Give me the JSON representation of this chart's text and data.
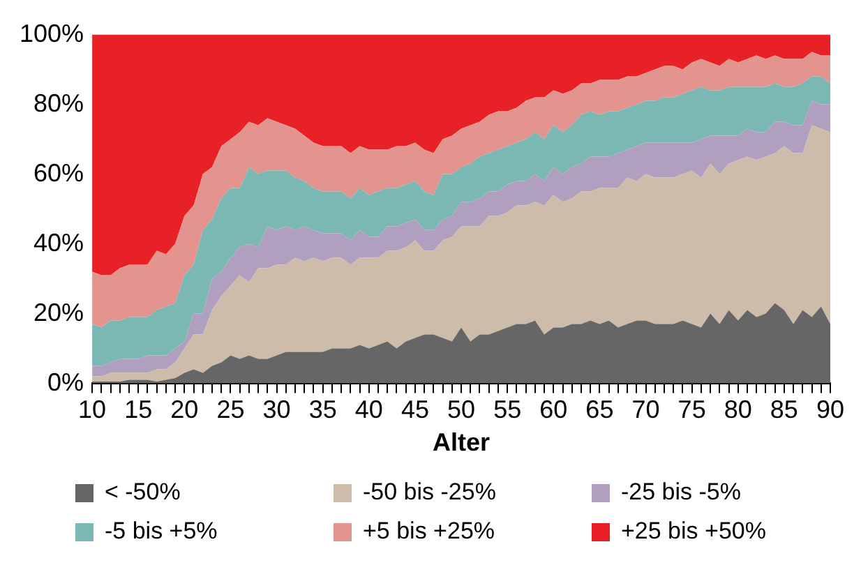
{
  "chart_data": {
    "type": "area",
    "stacked": true,
    "xlabel": "Alter",
    "legend": "bottom",
    "grid": false,
    "x": [
      10,
      11,
      12,
      13,
      14,
      15,
      16,
      17,
      18,
      19,
      20,
      21,
      22,
      23,
      24,
      25,
      26,
      27,
      28,
      29,
      30,
      31,
      32,
      33,
      34,
      35,
      36,
      37,
      38,
      39,
      40,
      41,
      42,
      43,
      44,
      45,
      46,
      47,
      48,
      49,
      50,
      51,
      52,
      53,
      54,
      55,
      56,
      57,
      58,
      59,
      60,
      61,
      62,
      63,
      64,
      65,
      66,
      67,
      68,
      69,
      70,
      71,
      72,
      73,
      74,
      75,
      76,
      77,
      78,
      79,
      80,
      81,
      82,
      83,
      84,
      85,
      86,
      87,
      88,
      89,
      90
    ],
    "xlim": [
      10,
      90
    ],
    "xticks": [
      10,
      {
        "value": 11,
        "label": null
      },
      {
        "value": 12,
        "label": null
      },
      {
        "value": 13,
        "label": null
      },
      {
        "value": 14,
        "label": null
      },
      15,
      {
        "value": 16,
        "label": null
      },
      {
        "value": 17,
        "label": null
      },
      {
        "value": 18,
        "label": null
      },
      {
        "value": 19,
        "label": null
      },
      20,
      {
        "value": 21,
        "label": null
      },
      {
        "value": 22,
        "label": null
      },
      {
        "value": 23,
        "label": null
      },
      {
        "value": 24,
        "label": null
      },
      25,
      {
        "value": 26,
        "label": null
      },
      {
        "value": 27,
        "label": null
      },
      {
        "value": 28,
        "label": null
      },
      {
        "value": 29,
        "label": null
      },
      30,
      {
        "value": 31,
        "label": null
      },
      {
        "value": 32,
        "label": null
      },
      {
        "value": 33,
        "label": null
      },
      {
        "value": 34,
        "label": null
      },
      35,
      {
        "value": 36,
        "label": null
      },
      {
        "value": 37,
        "label": null
      },
      {
        "value": 38,
        "label": null
      },
      {
        "value": 39,
        "label": null
      },
      40,
      {
        "value": 41,
        "label": null
      },
      {
        "value": 42,
        "label": null
      },
      {
        "value": 43,
        "label": null
      },
      {
        "value": 44,
        "label": null
      },
      45,
      {
        "value": 46,
        "label": null
      },
      {
        "value": 47,
        "label": null
      },
      {
        "value": 48,
        "label": null
      },
      {
        "value": 49,
        "label": null
      },
      50,
      {
        "value": 51,
        "label": null
      },
      {
        "value": 52,
        "label": null
      },
      {
        "value": 53,
        "label": null
      },
      {
        "value": 54,
        "label": null
      },
      55,
      {
        "value": 56,
        "label": null
      },
      {
        "value": 57,
        "label": null
      },
      {
        "value": 58,
        "label": null
      },
      {
        "value": 59,
        "label": null
      },
      60,
      {
        "value": 61,
        "label": null
      },
      {
        "value": 62,
        "label": null
      },
      {
        "value": 63,
        "label": null
      },
      {
        "value": 64,
        "label": null
      },
      65,
      {
        "value": 66,
        "label": null
      },
      {
        "value": 67,
        "label": null
      },
      {
        "value": 68,
        "label": null
      },
      {
        "value": 69,
        "label": null
      },
      70,
      {
        "value": 71,
        "label": null
      },
      {
        "value": 72,
        "label": null
      },
      {
        "value": 73,
        "label": null
      },
      {
        "value": 74,
        "label": null
      },
      75,
      {
        "value": 76,
        "label": null
      },
      {
        "value": 77,
        "label": null
      },
      {
        "value": 78,
        "label": null
      },
      {
        "value": 79,
        "label": null
      },
      80,
      {
        "value": 81,
        "label": null
      },
      {
        "value": 82,
        "label": null
      },
      {
        "value": 83,
        "label": null
      },
      {
        "value": 84,
        "label": null
      },
      85,
      {
        "value": 86,
        "label": null
      },
      {
        "value": 87,
        "label": null
      },
      {
        "value": 88,
        "label": null
      },
      {
        "value": 89,
        "label": null
      },
      90
    ],
    "ylim": [
      0,
      100
    ],
    "yticks": [
      {
        "value": 0,
        "label": "0%"
      },
      {
        "value": 20,
        "label": "20%"
      },
      {
        "value": 40,
        "label": "40%"
      },
      {
        "value": 60,
        "label": "60%"
      },
      {
        "value": 80,
        "label": "80%"
      },
      {
        "value": 100,
        "label": "100%"
      }
    ],
    "series": [
      {
        "name": "< -50%",
        "color": "#666666",
        "values": [
          0.5,
          0.5,
          0.5,
          0.5,
          1,
          1,
          1,
          0.5,
          1,
          1.5,
          3,
          4,
          3,
          5,
          6,
          8,
          7,
          8,
          7,
          7,
          8,
          9,
          9,
          9,
          9,
          9,
          10,
          10,
          10,
          11,
          10,
          11,
          12,
          10,
          12,
          13,
          14,
          14,
          13,
          12,
          16,
          12,
          14,
          14,
          15,
          16,
          17,
          17,
          18,
          14,
          16,
          16,
          17,
          17,
          18,
          17,
          18,
          16,
          17,
          18,
          18,
          17,
          17,
          17,
          18,
          17,
          16,
          20,
          17,
          21,
          18,
          21,
          19,
          20,
          23,
          21,
          17,
          21,
          19,
          22,
          17
        ]
      },
      {
        "name": "-50 bis -25%",
        "color": "#cdbca9",
        "values": [
          1.5,
          1.5,
          2.5,
          2.5,
          2,
          2,
          2,
          3.5,
          3,
          4.5,
          7,
          10,
          11,
          16,
          19,
          20,
          24,
          21,
          26,
          26,
          26,
          25,
          27,
          26,
          27,
          26,
          26,
          26,
          24,
          25,
          26,
          25,
          26,
          28,
          27,
          28,
          24,
          24,
          28,
          30,
          29,
          33,
          31,
          34,
          33,
          33,
          34,
          34,
          34,
          37,
          38,
          36,
          36,
          38,
          37,
          39,
          38,
          40,
          42,
          40,
          42,
          42,
          42,
          42,
          42,
          44,
          43,
          43,
          43,
          42,
          46,
          44,
          45,
          45,
          43,
          47,
          49,
          45,
          55,
          51,
          55
        ]
      },
      {
        "name": "-25 bis -5%",
        "color": "#b09fbf",
        "values": [
          3,
          3,
          3,
          4,
          4,
          4,
          5,
          4,
          4,
          4,
          2,
          6,
          6,
          9,
          7,
          8,
          8,
          11,
          6,
          12,
          10,
          11,
          8,
          10,
          8,
          8,
          7,
          7,
          7,
          8,
          6,
          6,
          7,
          7,
          7,
          6,
          6,
          6,
          6,
          6,
          7,
          7,
          8,
          7,
          7,
          8,
          7,
          7,
          8,
          7,
          8,
          8,
          9,
          8,
          10,
          9,
          9,
          10,
          8,
          10,
          9,
          10,
          10,
          10,
          9,
          8,
          11,
          8,
          11,
          8,
          7,
          8,
          8,
          7,
          9,
          7,
          8,
          8,
          7,
          7,
          8
        ]
      },
      {
        "name": "-5 bis +5%",
        "color": "#7bb8b3",
        "values": [
          12,
          11,
          12,
          11,
          12,
          12,
          11,
          13,
          14,
          13,
          19,
          14,
          24,
          17,
          21,
          20,
          17,
          22,
          21,
          16,
          17,
          16,
          15,
          13,
          12,
          12,
          12,
          12,
          12,
          12,
          12,
          13,
          11,
          11,
          11,
          11,
          11,
          10,
          13,
          12,
          10,
          11,
          12,
          11,
          12,
          11,
          11,
          12,
          12,
          12,
          12,
          12,
          12,
          14,
          13,
          12,
          13,
          12,
          12,
          12,
          12,
          12,
          13,
          13,
          14,
          15,
          15,
          13,
          13,
          14,
          14,
          12,
          13,
          13,
          11,
          10,
          11,
          12,
          7,
          8,
          6
        ]
      },
      {
        "name": "+5 bis +25%",
        "color": "#e3948e",
        "values": [
          15,
          15,
          13,
          15,
          15,
          15,
          15,
          17,
          15,
          17,
          17,
          17,
          16,
          15,
          15,
          14,
          16,
          13,
          14,
          15,
          14,
          13,
          14,
          13,
          13,
          13,
          13,
          13,
          13,
          12,
          13,
          12,
          11,
          12,
          11,
          11,
          12,
          12,
          10,
          11,
          11,
          11,
          10,
          11,
          11,
          10,
          10,
          11,
          10,
          12,
          10,
          11,
          10,
          9,
          8,
          10,
          9,
          9,
          9,
          8,
          8,
          9,
          9,
          9,
          7,
          8,
          8,
          8,
          7,
          8,
          7,
          8,
          9,
          8,
          8,
          8,
          8,
          7,
          7,
          6,
          8
        ]
      },
      {
        "name": "+25 bis +50%",
        "color": "#e82127",
        "values": [
          68,
          69,
          69,
          67,
          66,
          66,
          66,
          62,
          63,
          60,
          52,
          49,
          40,
          38,
          32,
          30,
          28,
          25,
          26,
          24,
          25,
          26,
          27,
          29,
          31,
          32,
          32,
          32,
          34,
          32,
          33,
          33,
          33,
          32,
          32,
          31,
          33,
          34,
          30,
          29,
          27,
          26,
          25,
          23,
          22,
          22,
          21,
          19,
          18,
          18,
          16,
          17,
          16,
          14,
          14,
          13,
          13,
          13,
          12,
          12,
          11,
          10,
          9,
          9,
          10,
          8,
          7,
          8,
          9,
          7,
          8,
          7,
          6,
          7,
          6,
          7,
          7,
          7,
          5,
          6,
          6
        ]
      }
    ]
  }
}
